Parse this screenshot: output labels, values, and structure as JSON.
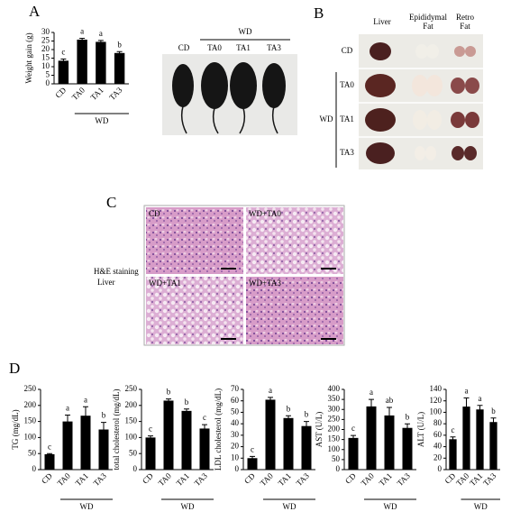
{
  "chart_data": [
    {
      "type": "bar",
      "ylabel": "Weight gain (g)",
      "categories": [
        "CD",
        "TA0",
        "TA1",
        "TA3"
      ],
      "group_label": "WD",
      "values": [
        13.5,
        25.8,
        24.5,
        18
      ],
      "errors": [
        1,
        0.8,
        0.8,
        0.8
      ],
      "annotations": [
        "c",
        "a",
        "a",
        "b"
      ],
      "color": "#000000",
      "ylim": [
        0,
        30
      ],
      "yticks": [
        0,
        5,
        10,
        15,
        20,
        25,
        30
      ]
    },
    {
      "type": "bar",
      "ylabel": "TG (mg/dL)",
      "categories": [
        "CD",
        "TA0",
        "TA1",
        "TA3"
      ],
      "group_label": "WD",
      "values": [
        48,
        150,
        168,
        125
      ],
      "errors": [
        2,
        20,
        28,
        22
      ],
      "annotations": [
        "c",
        "a",
        "a",
        "b"
      ],
      "color": "#000000",
      "ylim": [
        0,
        250
      ],
      "yticks": [
        0,
        50,
        100,
        150,
        200,
        250
      ]
    },
    {
      "type": "bar",
      "ylabel": "total cholesterol (mg/dL)",
      "categories": [
        "CD",
        "TA0",
        "TA1",
        "TA3"
      ],
      "group_label": "WD",
      "values": [
        100,
        215,
        183,
        128
      ],
      "errors": [
        5,
        5,
        6,
        12
      ],
      "annotations": [
        "c",
        "b",
        "b",
        "c"
      ],
      "color": "#000000",
      "ylim": [
        0,
        250
      ],
      "yticks": [
        0,
        50,
        100,
        150,
        200,
        250
      ]
    },
    {
      "type": "bar",
      "ylabel": "LDL cholesterol (mg/dL)",
      "categories": [
        "CD",
        "TA0",
        "TA1",
        "TA3"
      ],
      "group_label": "WD",
      "values": [
        10,
        61,
        45,
        38
      ],
      "errors": [
        1.5,
        2,
        2,
        4
      ],
      "annotations": [
        "c",
        "a",
        "b",
        "b"
      ],
      "color": "#000000",
      "ylim": [
        0,
        70
      ],
      "yticks": [
        0,
        10,
        20,
        30,
        40,
        50,
        60,
        70
      ]
    },
    {
      "type": "bar",
      "ylabel": "AST (U/L)",
      "categories": [
        "CD",
        "TA0",
        "TA1",
        "TA3"
      ],
      "group_label": "WD",
      "values": [
        158,
        315,
        270,
        208
      ],
      "errors": [
        12,
        35,
        40,
        20
      ],
      "annotations": [
        "c",
        "a",
        "ab",
        "b"
      ],
      "color": "#000000",
      "ylim": [
        0,
        400
      ],
      "yticks": [
        0,
        50,
        100,
        150,
        200,
        250,
        300,
        350,
        400
      ]
    },
    {
      "type": "bar",
      "ylabel": "ALT (U/L)",
      "categories": [
        "CD",
        "TA0",
        "TA1",
        "TA3"
      ],
      "group_label": "WD",
      "values": [
        53,
        110,
        105,
        83
      ],
      "errors": [
        4,
        15,
        7,
        7
      ],
      "annotations": [
        "c",
        "a",
        "a",
        "b"
      ],
      "color": "#000000",
      "ylim": [
        0,
        140
      ],
      "yticks": [
        0,
        20,
        40,
        60,
        80,
        100,
        120,
        140
      ]
    }
  ],
  "panels": {
    "a": "A",
    "b": "B",
    "c": "C",
    "d": "D"
  },
  "photo_a": {
    "labels": [
      "CD",
      "TA0",
      "TA1",
      "TA3"
    ],
    "group": "WD"
  },
  "photo_b": {
    "columns": [
      "Liver",
      "Epididymal Fat",
      "Retro Fat"
    ],
    "rows": [
      "CD",
      "TA0",
      "TA1",
      "TA3"
    ],
    "group": "WD"
  },
  "photo_c": {
    "labels": [
      "CD",
      "WD+TA0",
      "WD+TA1",
      "WD+TA3"
    ],
    "stain": "H&E staining",
    "tissue": "Liver"
  }
}
